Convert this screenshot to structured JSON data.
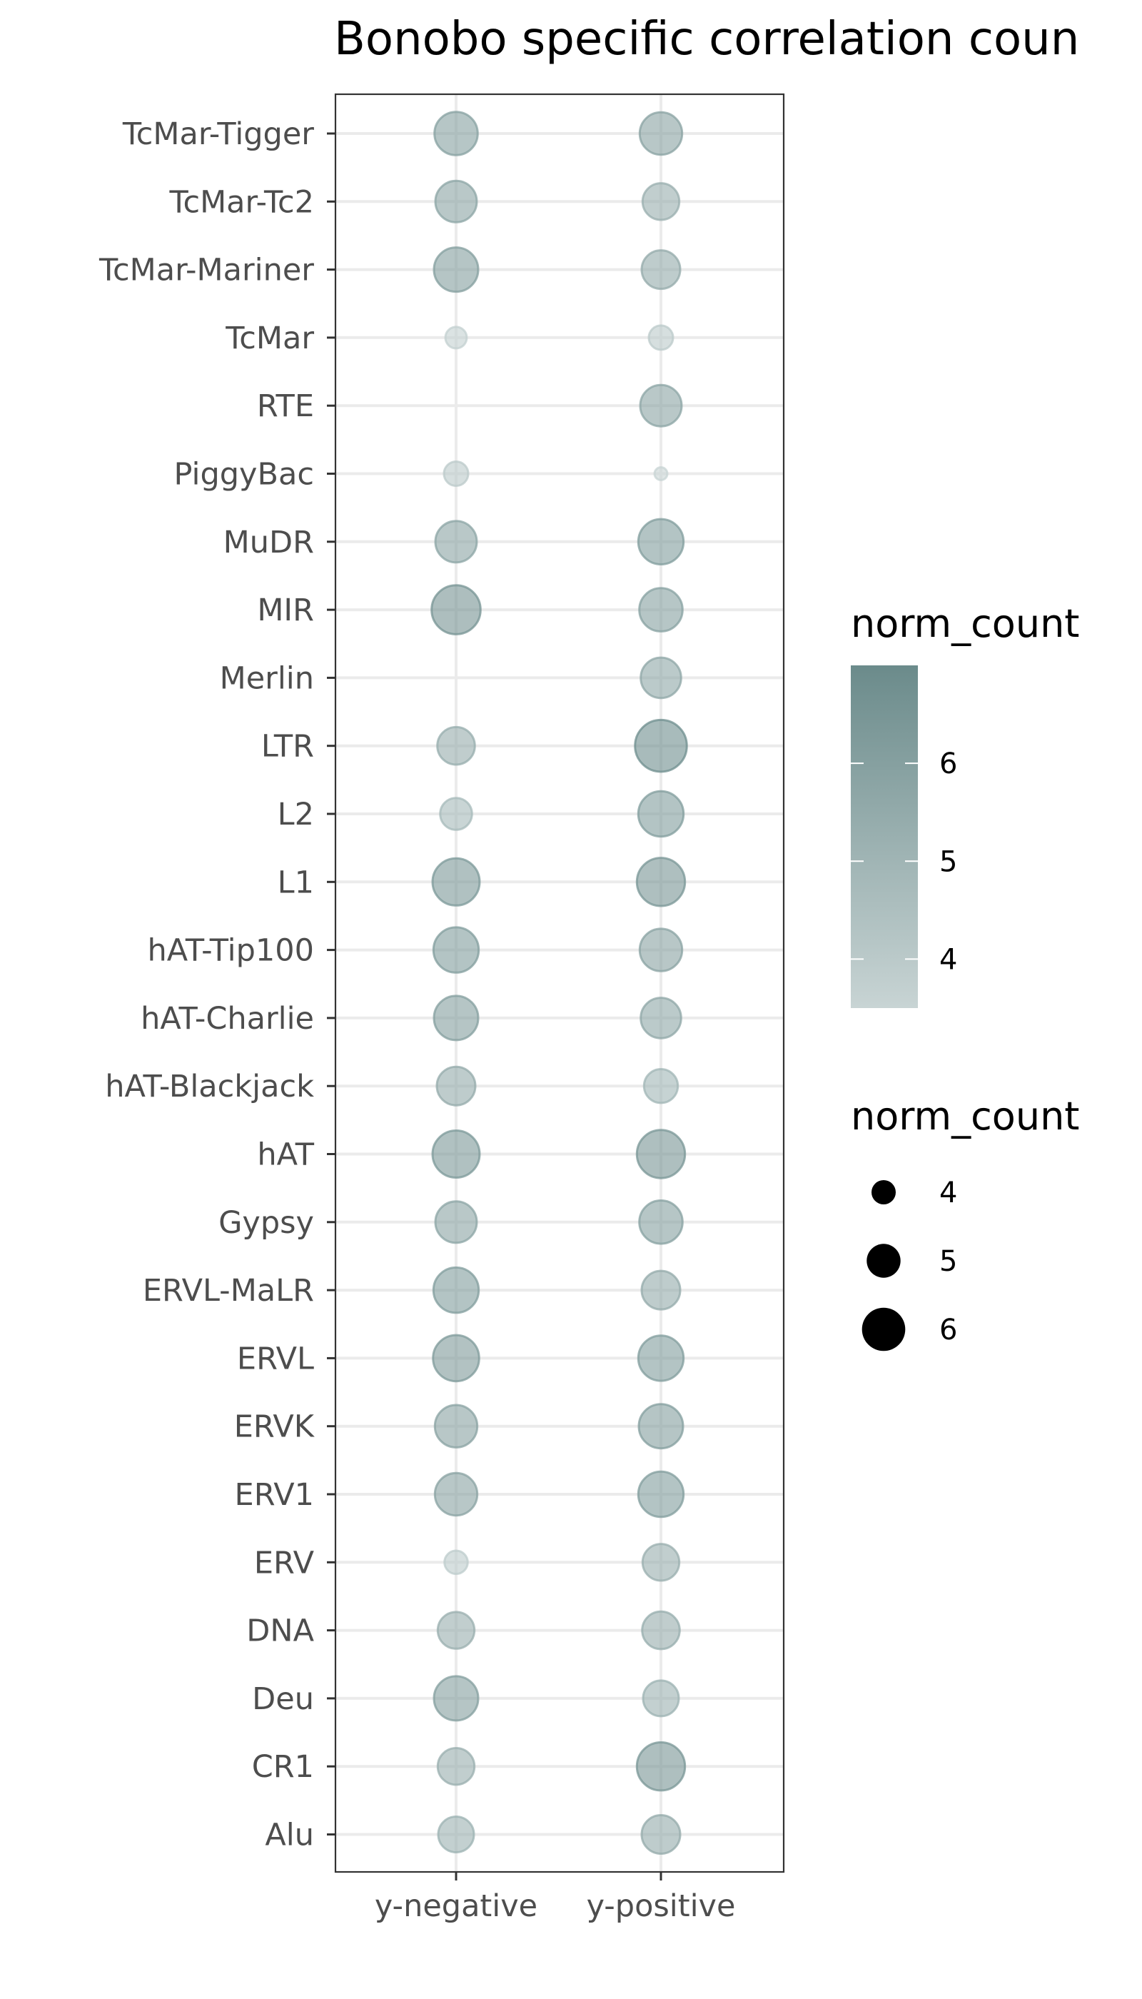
{
  "chart_data": {
    "type": "scatter",
    "title": "Bonobo specific correlation coun",
    "xlabel": "",
    "ylabel": "",
    "x_categories": [
      "y-negative",
      "y-positive"
    ],
    "y_categories": [
      "TcMar-Tigger",
      "TcMar-Tc2",
      "TcMar-Mariner",
      "TcMar",
      "RTE",
      "PiggyBac",
      "MuDR",
      "MIR",
      "Merlin",
      "LTR",
      "L2",
      "L1",
      "hAT-Tip100",
      "hAT-Charlie",
      "hAT-Blackjack",
      "hAT",
      "Gypsy",
      "ERVL-MaLR",
      "ERVL",
      "ERVK",
      "ERV1",
      "ERV",
      "DNA",
      "Deu",
      "CR1",
      "Alu"
    ],
    "series": [
      {
        "x": "y-negative",
        "values": [
          6.0,
          5.8,
          6.1,
          3.7,
          null,
          4.0,
          5.8,
          6.6,
          null,
          5.4,
          4.8,
          6.4,
          6.2,
          6.1,
          5.5,
          6.4,
          5.8,
          6.2,
          6.3,
          5.9,
          5.9,
          3.9,
          5.3,
          6.1,
          5.3,
          5.2
        ],
        "mean_markers": [
          6.0,
          5.8,
          6.1,
          3.7,
          null,
          4.0,
          5.8,
          6.6,
          null,
          5.4,
          4.8,
          6.4,
          6.2,
          6.1,
          5.5,
          6.4,
          5.8,
          6.2,
          6.3,
          5.9,
          5.9,
          3.9,
          5.3,
          6.1,
          5.3,
          5.2
        ]
      },
      {
        "x": "y-positive",
        "values": [
          5.9,
          5.3,
          5.5,
          4.0,
          5.8,
          2.8,
          6.2,
          6.0,
          5.7,
          6.9,
          6.2,
          6.5,
          5.9,
          5.7,
          5.0,
          6.5,
          6.0,
          5.5,
          6.2,
          6.1,
          6.2,
          5.3,
          5.4,
          5.2,
          6.5,
          5.5
        ]
      }
    ],
    "size_legend": {
      "title": "norm_count",
      "values": [
        4,
        5,
        6
      ],
      "labels": [
        "4",
        "5",
        "6"
      ]
    },
    "color_legend": {
      "title": "norm_count",
      "ticks": [
        4,
        5,
        6
      ],
      "labels": [
        "4",
        "5",
        "6"
      ],
      "min": 3.5,
      "max": 7.0,
      "low_color": "#c8d4d4",
      "high_color": "#6b8b8b"
    },
    "grid": true,
    "legend_position": "right",
    "point_opacity": 0.6
  }
}
